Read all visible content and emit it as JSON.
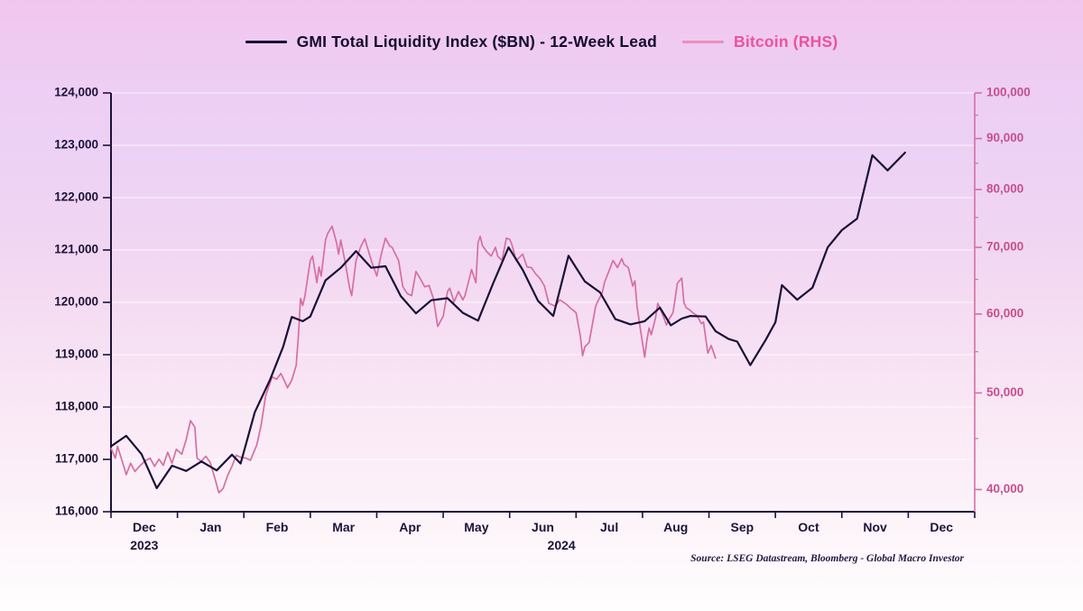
{
  "legend": {
    "series": [
      {
        "label": "GMI Total Liquidity Index ($BN) - 12-Week Lead",
        "sample_color": "#191037",
        "label_color": "#140d2e"
      },
      {
        "label": "Bitcoin (RHS)",
        "sample_color": "#e690bd",
        "label_color": "#e9549a"
      }
    ]
  },
  "source_note": "Source: LSEG Datastream, Bloomberg - Global Macro Investor",
  "colors": {
    "navy_line": "#191037",
    "bitcoin_line": "#d56fa4",
    "left_axis": "#1c1338",
    "right_axis_line": "#d66fa5",
    "right_axis_label": "#c64f8c",
    "gridline": "rgba(255,255,255,0.75)"
  },
  "chart_data": {
    "type": "line",
    "x_axis": {
      "month_labels": [
        "Dec",
        "Jan",
        "Feb",
        "Mar",
        "Apr",
        "May",
        "Jun",
        "Jul",
        "Aug",
        "Sep",
        "Oct",
        "Nov",
        "Dec"
      ],
      "year_labels": [
        {
          "label": "2023",
          "m": 0.5
        },
        {
          "label": "2024",
          "m": 6.78
        }
      ],
      "start": "2023-12-01",
      "end": "2025-01-01"
    },
    "left_axis": {
      "scale": "linear",
      "min": 116000,
      "max": 124000,
      "tick_step": 1000
    },
    "right_axis": {
      "scale": "log",
      "ticks": [
        40000,
        50000,
        60000,
        70000,
        80000,
        90000,
        100000
      ],
      "minor_ticks": [
        45000,
        55000,
        65000,
        75000,
        85000,
        95000
      ],
      "top": 100000,
      "bottom": 38000
    },
    "series": [
      {
        "name": "GMI Total Liquidity Index ($BN) - 12-Week Lead",
        "axis": "left",
        "points": [
          [
            "2023-12-01",
            117250
          ],
          [
            "2023-12-08",
            117450
          ],
          [
            "2023-12-15",
            117100
          ],
          [
            "2023-12-22",
            116450
          ],
          [
            "2023-12-29",
            116880
          ],
          [
            "2024-01-05",
            116780
          ],
          [
            "2024-01-12",
            116960
          ],
          [
            "2024-01-19",
            116790
          ],
          [
            "2024-01-26",
            117090
          ],
          [
            "2024-01-30",
            116920
          ],
          [
            "2024-02-06",
            117900
          ],
          [
            "2024-02-13",
            118520
          ],
          [
            "2024-02-19",
            119150
          ],
          [
            "2024-02-23",
            119720
          ],
          [
            "2024-02-28",
            119640
          ],
          [
            "2024-03-01",
            119730
          ],
          [
            "2024-03-08",
            120420
          ],
          [
            "2024-03-15",
            120660
          ],
          [
            "2024-03-22",
            120980
          ],
          [
            "2024-03-29",
            120660
          ],
          [
            "2024-04-05",
            120690
          ],
          [
            "2024-04-12",
            120120
          ],
          [
            "2024-04-19",
            119790
          ],
          [
            "2024-04-26",
            120040
          ],
          [
            "2024-05-03",
            120080
          ],
          [
            "2024-05-10",
            119800
          ],
          [
            "2024-05-17",
            119650
          ],
          [
            "2024-05-24",
            120370
          ],
          [
            "2024-05-31",
            121050
          ],
          [
            "2024-06-07",
            120620
          ],
          [
            "2024-06-14",
            120030
          ],
          [
            "2024-06-21",
            119740
          ],
          [
            "2024-06-28",
            120890
          ],
          [
            "2024-07-05",
            120400
          ],
          [
            "2024-07-12",
            120190
          ],
          [
            "2024-07-19",
            119680
          ],
          [
            "2024-07-26",
            119580
          ],
          [
            "2024-08-02",
            119640
          ],
          [
            "2024-08-09",
            119900
          ],
          [
            "2024-08-14",
            119560
          ],
          [
            "2024-08-19",
            119690
          ],
          [
            "2024-08-23",
            119740
          ],
          [
            "2024-08-30",
            119730
          ],
          [
            "2024-09-04",
            119450
          ],
          [
            "2024-09-10",
            119300
          ],
          [
            "2024-09-14",
            119250
          ],
          [
            "2024-09-20",
            118800
          ],
          [
            "2024-09-27",
            119280
          ],
          [
            "2024-10-01",
            119620
          ],
          [
            "2024-10-04",
            120330
          ],
          [
            "2024-10-11",
            120050
          ],
          [
            "2024-10-18",
            120280
          ],
          [
            "2024-10-25",
            121050
          ],
          [
            "2024-11-01",
            121380
          ],
          [
            "2024-11-08",
            121600
          ],
          [
            "2024-11-15",
            122810
          ],
          [
            "2024-11-22",
            122520
          ],
          [
            "2024-11-30",
            122860
          ]
        ]
      },
      {
        "name": "Bitcoin (RHS)",
        "axis": "right",
        "points": [
          [
            "2023-12-01",
            44000
          ],
          [
            "2023-12-03",
            43000
          ],
          [
            "2023-12-04",
            44200
          ],
          [
            "2023-12-06",
            42800
          ],
          [
            "2023-12-08",
            41400
          ],
          [
            "2023-12-10",
            42500
          ],
          [
            "2023-12-12",
            41700
          ],
          [
            "2023-12-14",
            42200
          ],
          [
            "2023-12-17",
            42800
          ],
          [
            "2023-12-19",
            43000
          ],
          [
            "2023-12-21",
            42200
          ],
          [
            "2023-12-23",
            42900
          ],
          [
            "2023-12-25",
            42300
          ],
          [
            "2023-12-27",
            43600
          ],
          [
            "2023-12-29",
            42500
          ],
          [
            "2023-12-31",
            43900
          ],
          [
            "2024-01-03",
            43400
          ],
          [
            "2024-01-05",
            44900
          ],
          [
            "2024-01-07",
            46900
          ],
          [
            "2024-01-09",
            46200
          ],
          [
            "2024-01-10",
            43000
          ],
          [
            "2024-01-12",
            42700
          ],
          [
            "2024-01-14",
            43200
          ],
          [
            "2024-01-16",
            42600
          ],
          [
            "2024-01-18",
            41200
          ],
          [
            "2024-01-20",
            39700
          ],
          [
            "2024-01-22",
            40100
          ],
          [
            "2024-01-24",
            41300
          ],
          [
            "2024-01-26",
            42200
          ],
          [
            "2024-01-28",
            43300
          ],
          [
            "2024-01-30",
            43100
          ],
          [
            "2024-02-02",
            43000
          ],
          [
            "2024-02-04",
            42800
          ],
          [
            "2024-02-07",
            44400
          ],
          [
            "2024-02-09",
            46500
          ],
          [
            "2024-02-11",
            49700
          ],
          [
            "2024-02-14",
            51900
          ],
          [
            "2024-02-16",
            51600
          ],
          [
            "2024-02-18",
            52300
          ],
          [
            "2024-02-20",
            51200
          ],
          [
            "2024-02-21",
            50600
          ],
          [
            "2024-02-23",
            51500
          ],
          [
            "2024-02-25",
            53300
          ],
          [
            "2024-02-26",
            57000
          ],
          [
            "2024-02-27",
            62200
          ],
          [
            "2024-02-28",
            61200
          ],
          [
            "2024-02-29",
            62500
          ],
          [
            "2024-03-01",
            67900
          ],
          [
            "2024-03-02",
            68600
          ],
          [
            "2024-03-04",
            64500
          ],
          [
            "2024-03-05",
            66900
          ],
          [
            "2024-03-06",
            65500
          ],
          [
            "2024-03-08",
            71200
          ],
          [
            "2024-03-09",
            72300
          ],
          [
            "2024-03-11",
            73500
          ],
          [
            "2024-03-13",
            70800
          ],
          [
            "2024-03-14",
            68900
          ],
          [
            "2024-03-15",
            71200
          ],
          [
            "2024-03-17",
            67600
          ],
          [
            "2024-03-19",
            63800
          ],
          [
            "2024-03-20",
            62600
          ],
          [
            "2024-03-22",
            67900
          ],
          [
            "2024-03-24",
            70000
          ],
          [
            "2024-03-26",
            71400
          ],
          [
            "2024-03-29",
            67900
          ],
          [
            "2024-04-01",
            65500
          ],
          [
            "2024-04-03",
            68800
          ],
          [
            "2024-04-05",
            71500
          ],
          [
            "2024-04-07",
            70200
          ],
          [
            "2024-04-08",
            70000
          ],
          [
            "2024-04-11",
            67900
          ],
          [
            "2024-04-13",
            63900
          ],
          [
            "2024-04-15",
            62900
          ],
          [
            "2024-04-17",
            62600
          ],
          [
            "2024-04-19",
            66200
          ],
          [
            "2024-04-21",
            65100
          ],
          [
            "2024-04-23",
            63900
          ],
          [
            "2024-04-25",
            64100
          ],
          [
            "2024-04-27",
            62200
          ],
          [
            "2024-04-29",
            58300
          ],
          [
            "2024-05-01",
            59700
          ],
          [
            "2024-05-03",
            63200
          ],
          [
            "2024-05-04",
            63700
          ],
          [
            "2024-05-06",
            61700
          ],
          [
            "2024-05-08",
            63200
          ],
          [
            "2024-05-10",
            62000
          ],
          [
            "2024-05-11",
            62600
          ],
          [
            "2024-05-13",
            65100
          ],
          [
            "2024-05-14",
            66500
          ],
          [
            "2024-05-16",
            64500
          ],
          [
            "2024-05-17",
            70800
          ],
          [
            "2024-05-18",
            71800
          ],
          [
            "2024-05-19",
            70300
          ],
          [
            "2024-05-21",
            69300
          ],
          [
            "2024-05-23",
            68600
          ],
          [
            "2024-05-25",
            70000
          ],
          [
            "2024-05-26",
            68600
          ],
          [
            "2024-05-28",
            67900
          ],
          [
            "2024-05-30",
            71500
          ],
          [
            "2024-06-01",
            71300
          ],
          [
            "2024-06-02",
            70500
          ],
          [
            "2024-06-04",
            67900
          ],
          [
            "2024-06-07",
            68900
          ],
          [
            "2024-06-09",
            66900
          ],
          [
            "2024-06-11",
            66800
          ],
          [
            "2024-06-13",
            65800
          ],
          [
            "2024-06-15",
            65100
          ],
          [
            "2024-06-17",
            64000
          ],
          [
            "2024-06-19",
            61500
          ],
          [
            "2024-06-22",
            61100
          ],
          [
            "2024-06-24",
            62000
          ],
          [
            "2024-06-27",
            61400
          ],
          [
            "2024-06-29",
            60800
          ],
          [
            "2024-07-01",
            60200
          ],
          [
            "2024-07-03",
            57000
          ],
          [
            "2024-07-04",
            54500
          ],
          [
            "2024-07-05",
            55600
          ],
          [
            "2024-07-07",
            56200
          ],
          [
            "2024-07-10",
            61100
          ],
          [
            "2024-07-11",
            61800
          ],
          [
            "2024-07-13",
            63000
          ],
          [
            "2024-07-14",
            64500
          ],
          [
            "2024-07-16",
            66200
          ],
          [
            "2024-07-18",
            67900
          ],
          [
            "2024-07-20",
            66800
          ],
          [
            "2024-07-22",
            68200
          ],
          [
            "2024-07-23",
            67300
          ],
          [
            "2024-07-25",
            66800
          ],
          [
            "2024-07-27",
            64000
          ],
          [
            "2024-07-28",
            64800
          ],
          [
            "2024-07-29",
            61000
          ],
          [
            "2024-08-02",
            54300
          ],
          [
            "2024-08-03",
            56500
          ],
          [
            "2024-08-04",
            58100
          ],
          [
            "2024-08-05",
            57200
          ],
          [
            "2024-08-07",
            59500
          ],
          [
            "2024-08-08",
            61500
          ],
          [
            "2024-08-10",
            60100
          ],
          [
            "2024-08-12",
            58500
          ],
          [
            "2024-08-13",
            59200
          ],
          [
            "2024-08-15",
            60200
          ],
          [
            "2024-08-16",
            62200
          ],
          [
            "2024-08-17",
            64400
          ],
          [
            "2024-08-19",
            65200
          ],
          [
            "2024-08-20",
            61600
          ],
          [
            "2024-08-21",
            60900
          ],
          [
            "2024-08-23",
            60500
          ],
          [
            "2024-08-24",
            60200
          ],
          [
            "2024-08-26",
            59800
          ],
          [
            "2024-08-28",
            58700
          ],
          [
            "2024-08-29",
            58900
          ],
          [
            "2024-08-30",
            56800
          ],
          [
            "2024-08-31",
            54800
          ],
          [
            "2024-09-02",
            55800
          ],
          [
            "2024-09-04",
            54200
          ]
        ]
      }
    ]
  }
}
